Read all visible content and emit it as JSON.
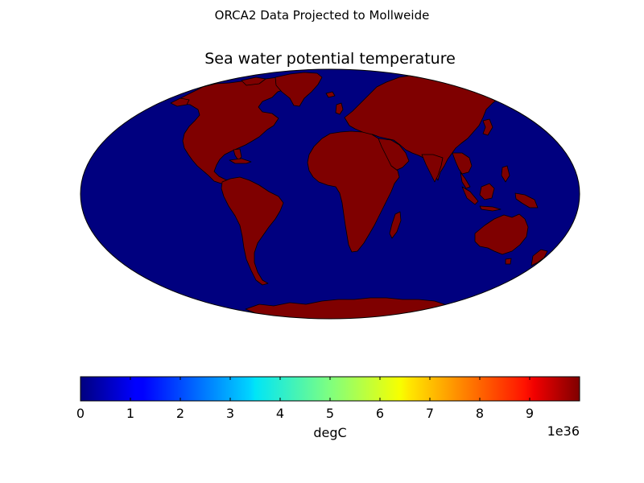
{
  "figure": {
    "suptitle": "ORCA2 Data Projected to Mollweide"
  },
  "chart_data": {
    "type": "heatmap",
    "projection": "Mollweide",
    "title": "Sea water potential temperature",
    "field_description": "Ocean cells are at the minimum of the colour scale (dark blue); land cells are masked fill values at ~1e37 (dark red).",
    "ocean_value": 0,
    "land_value": 1e+37,
    "ocean_color": "#00007f",
    "land_color": "#7f0000",
    "coastline_color": "#000000",
    "colorbar": {
      "cmap": "jet",
      "orientation": "horizontal",
      "range": [
        0,
        1e+37
      ],
      "ticks": [
        0,
        1,
        2,
        3,
        4,
        5,
        6,
        7,
        8,
        9
      ],
      "tick_labels": [
        "0",
        "1",
        "2",
        "3",
        "4",
        "5",
        "6",
        "7",
        "8",
        "9"
      ],
      "multiplier_label": "1e36",
      "label": "degC"
    }
  }
}
